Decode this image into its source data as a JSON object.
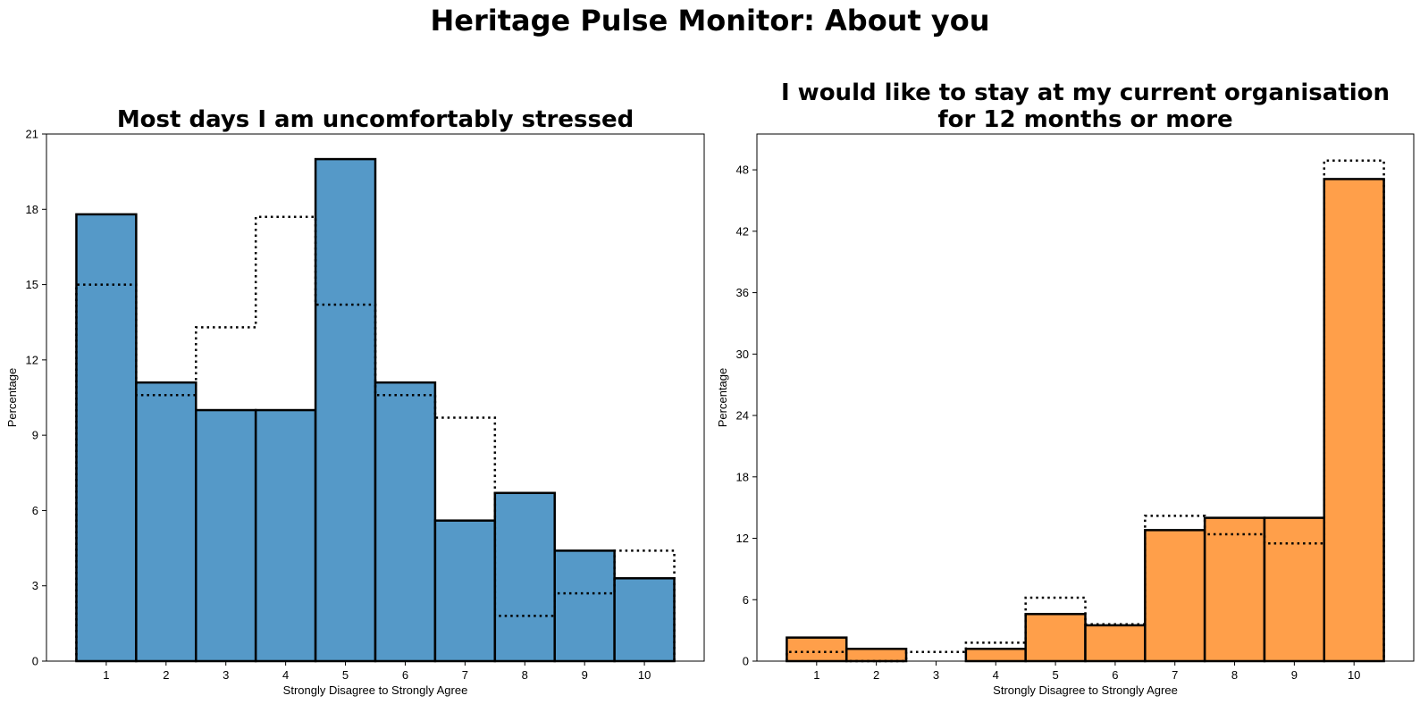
{
  "title": "Heritage Pulse Monitor: About you",
  "chart_data": [
    {
      "type": "bar",
      "title_lines": [
        "Most days I am uncomfortably stressed"
      ],
      "xlabel": "Strongly Disagree to Strongly Agree",
      "ylabel": "Percentage",
      "categories": [
        "1",
        "2",
        "3",
        "4",
        "5",
        "6",
        "7",
        "8",
        "9",
        "10"
      ],
      "ylim": [
        0,
        21
      ],
      "yticks": [
        0,
        3,
        6,
        9,
        12,
        15,
        18,
        21
      ],
      "color": "#5599c8",
      "series": [
        {
          "values": [
            17.8,
            11.1,
            10.0,
            10.0,
            20.0,
            11.1,
            5.6,
            6.7,
            4.4,
            3.3
          ]
        },
        {
          "style": "dotted-outline",
          "values": [
            15.0,
            10.6,
            13.3,
            17.7,
            14.2,
            10.6,
            9.7,
            1.8,
            2.7,
            4.4
          ]
        }
      ]
    },
    {
      "type": "bar",
      "title_lines": [
        "I would like to stay at my current organisation",
        "for 12 months or more"
      ],
      "xlabel": "Strongly Disagree to Strongly Agree",
      "ylabel": "Percentage",
      "categories": [
        "1",
        "2",
        "3",
        "4",
        "5",
        "6",
        "7",
        "8",
        "9",
        "10"
      ],
      "ylim": [
        0,
        51.5
      ],
      "yticks": [
        0,
        6,
        12,
        18,
        24,
        30,
        36,
        42,
        48
      ],
      "color": "#ff9f4a",
      "series": [
        {
          "values": [
            2.3,
            1.2,
            0.0,
            1.2,
            4.6,
            3.5,
            12.8,
            14.0,
            14.0,
            47.1
          ]
        },
        {
          "style": "dotted-outline",
          "values": [
            0.9,
            0.0,
            0.9,
            1.8,
            6.2,
            3.6,
            14.2,
            12.4,
            11.5,
            48.9
          ]
        }
      ]
    }
  ]
}
